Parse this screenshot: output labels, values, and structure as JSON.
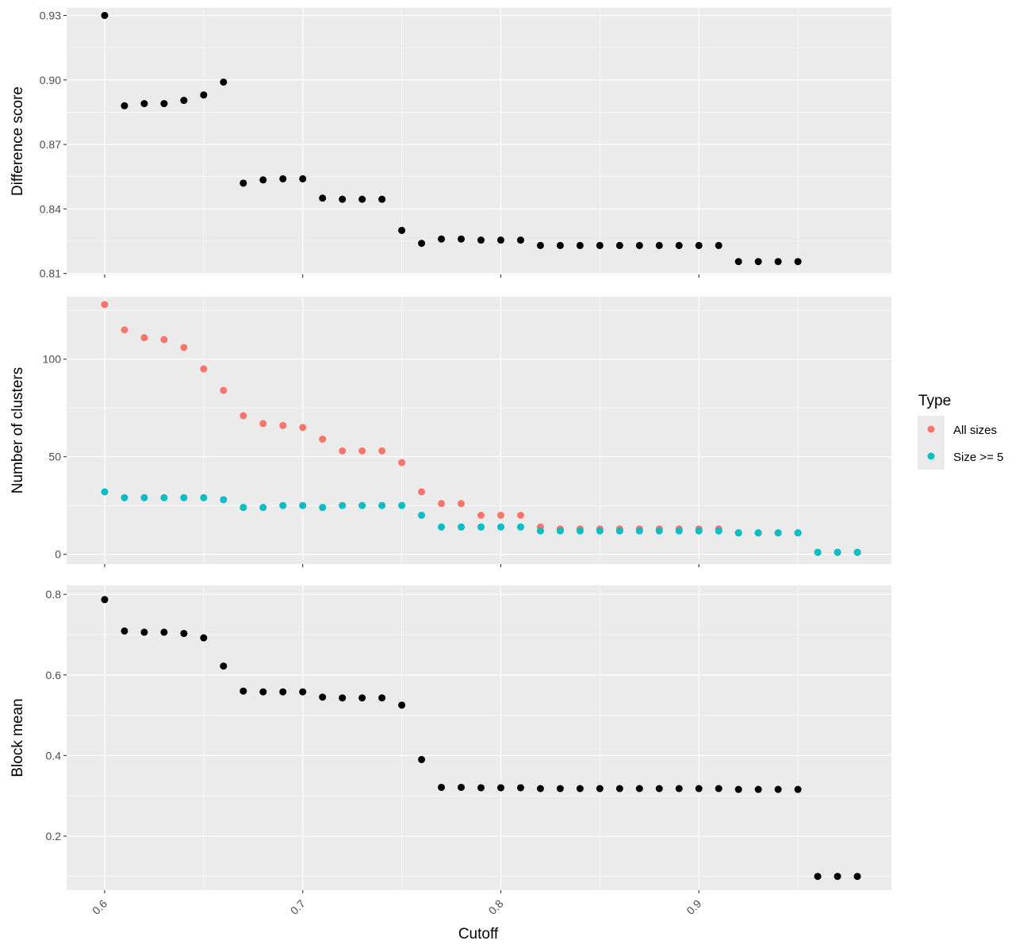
{
  "chart_data": {
    "type": "scatter",
    "xlabel": "Cutoff",
    "x_ticks": [
      "0.6",
      "0.7",
      "0.8",
      "0.9"
    ],
    "x_tick_values": [
      0.6,
      0.7,
      0.8,
      0.9
    ],
    "xlim": [
      0.5808,
      0.9972
    ],
    "x": [
      0.6,
      0.61,
      0.62,
      0.63,
      0.64,
      0.65,
      0.66,
      0.67,
      0.68,
      0.69,
      0.7,
      0.71,
      0.72,
      0.73,
      0.74,
      0.75,
      0.76,
      0.77,
      0.78,
      0.79,
      0.8,
      0.81,
      0.82,
      0.83,
      0.84,
      0.85,
      0.86,
      0.87,
      0.88,
      0.89,
      0.9,
      0.91,
      0.92,
      0.93,
      0.94,
      0.95,
      0.96,
      0.97,
      0.98
    ],
    "grid": true,
    "legend": {
      "title": "Type",
      "position": "right",
      "entries": [
        {
          "label": "All sizes",
          "color": "#F8766D"
        },
        {
          "label": "Size >= 5",
          "color": "#00BFC4"
        }
      ]
    },
    "panels": [
      {
        "ylabel": "Difference score",
        "ylim": [
          0.8095,
          0.9335
        ],
        "y_ticks": [
          "0.81",
          "0.84",
          "0.87",
          "0.90",
          "0.93"
        ],
        "y_tick_values": [
          0.81,
          0.84,
          0.87,
          0.9,
          0.93
        ],
        "series": [
          {
            "color": "#000000",
            "values": [
              0.93,
              0.888,
              0.889,
              0.889,
              0.8905,
              0.893,
              0.899,
              0.852,
              0.8535,
              0.854,
              0.854,
              0.845,
              0.8445,
              0.8445,
              0.8445,
              0.83,
              0.824,
              0.826,
              0.826,
              0.8255,
              0.8255,
              0.8255,
              0.823,
              0.823,
              0.823,
              0.823,
              0.823,
              0.823,
              0.823,
              0.823,
              0.823,
              0.823,
              0.8155,
              0.8155,
              0.8155,
              0.8155,
              null,
              null,
              null
            ]
          }
        ]
      },
      {
        "ylabel": "Number of clusters",
        "ylim": [
          -5,
          132
        ],
        "y_ticks": [
          "0",
          "50",
          "100"
        ],
        "y_tick_values": [
          0,
          50,
          100
        ],
        "series": [
          {
            "name": "All sizes",
            "color": "#F8766D",
            "values": [
              128,
              115,
              111,
              110,
              106,
              95,
              84,
              71,
              67,
              66,
              65,
              59,
              53,
              53,
              53,
              47,
              32,
              26,
              26,
              20,
              20,
              20,
              14,
              13,
              13,
              13,
              13,
              13,
              13,
              13,
              13,
              13,
              11,
              11,
              11,
              11,
              1,
              1,
              1
            ]
          },
          {
            "name": "Size >= 5",
            "color": "#00BFC4",
            "values": [
              32,
              29,
              29,
              29,
              29,
              29,
              28,
              24,
              24,
              25,
              25,
              24,
              25,
              25,
              25,
              25,
              20,
              14,
              14,
              14,
              14,
              14,
              12,
              12,
              12,
              12,
              12,
              12,
              12,
              12,
              12,
              12,
              11,
              11,
              11,
              11,
              1,
              1,
              1
            ]
          }
        ]
      },
      {
        "ylabel": "Block mean",
        "ylim": [
          0.066,
          0.822
        ],
        "y_ticks": [
          "0.2",
          "0.4",
          "0.6",
          "0.8"
        ],
        "y_tick_values": [
          0.2,
          0.4,
          0.6,
          0.8
        ],
        "series": [
          {
            "color": "#000000",
            "values": [
              0.787,
              0.709,
              0.706,
              0.706,
              0.703,
              0.692,
              0.622,
              0.56,
              0.558,
              0.558,
              0.558,
              0.545,
              0.543,
              0.543,
              0.543,
              0.525,
              0.39,
              0.321,
              0.321,
              0.32,
              0.32,
              0.32,
              0.318,
              0.318,
              0.318,
              0.318,
              0.318,
              0.318,
              0.318,
              0.318,
              0.318,
              0.318,
              0.316,
              0.316,
              0.316,
              0.316,
              0.1,
              0.1,
              0.1
            ]
          }
        ]
      }
    ]
  }
}
